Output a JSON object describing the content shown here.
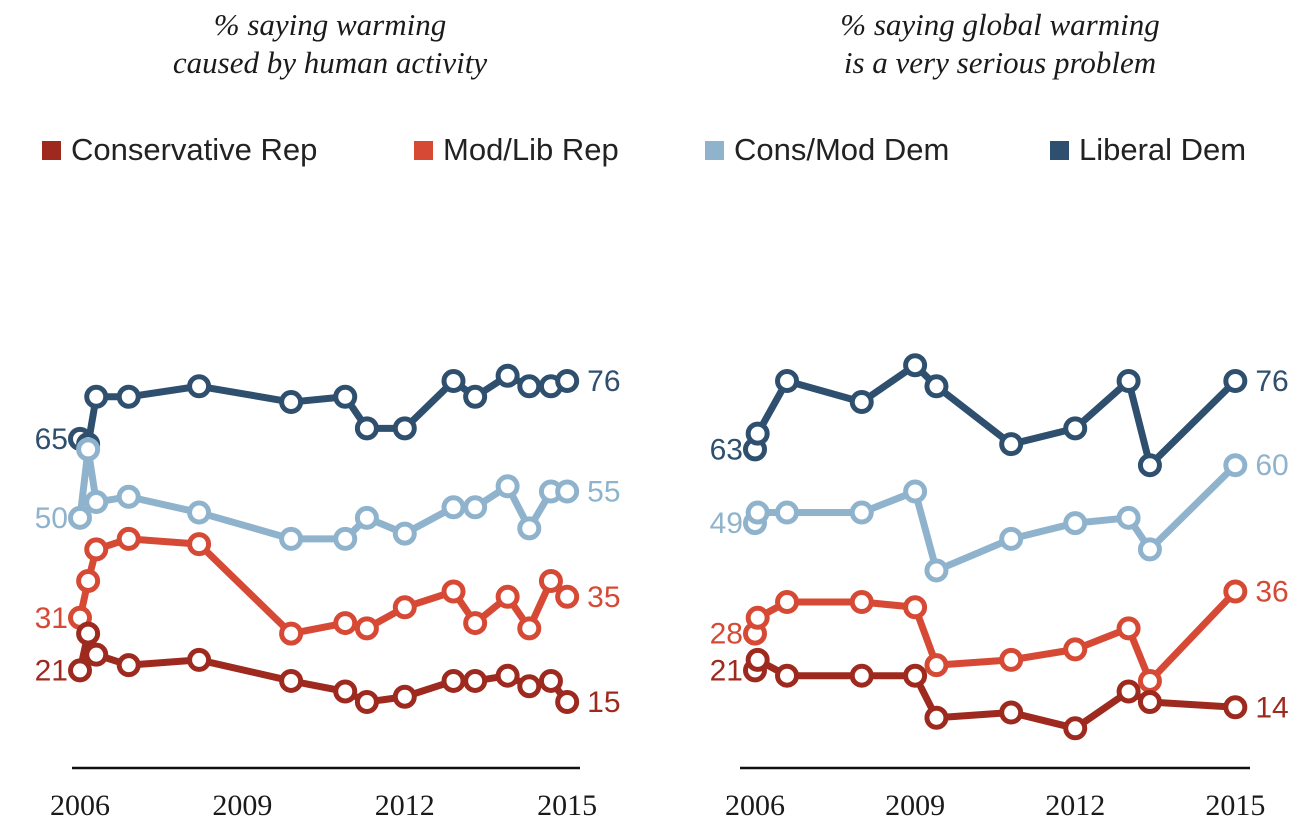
{
  "chart_data": [
    {
      "type": "line",
      "title": "% saying warming\ncaused by human activity",
      "x_ticks": [
        "2006",
        "2009",
        "2012",
        "2015"
      ],
      "xlim": [
        2006,
        2015.2
      ],
      "series": [
        {
          "name": "Liberal Dem",
          "color": "#2f4f6f",
          "x": [
            2006.0,
            2006.15,
            2006.3,
            2006.9,
            2008.2,
            2009.9,
            2010.9,
            2011.3,
            2012.0,
            2012.9,
            2013.3,
            2013.9,
            2014.3,
            2014.7,
            2015.0
          ],
          "y": [
            65,
            64,
            73,
            73,
            75,
            72,
            73,
            67,
            67,
            76,
            73,
            77,
            75,
            75,
            76
          ],
          "start_label": "65",
          "end_label": "76"
        },
        {
          "name": "Cons/Mod Dem",
          "color": "#8fb3cc",
          "x": [
            2006.0,
            2006.15,
            2006.3,
            2006.9,
            2008.2,
            2009.9,
            2010.9,
            2011.3,
            2012.0,
            2012.9,
            2013.3,
            2013.9,
            2014.3,
            2014.7,
            2015.0
          ],
          "y": [
            50,
            63,
            53,
            54,
            51,
            46,
            46,
            50,
            47,
            52,
            52,
            56,
            48,
            55,
            55
          ],
          "start_label": "50",
          "end_label": "55"
        },
        {
          "name": "Mod/Lib Rep",
          "color": "#d64a35",
          "x": [
            2006.0,
            2006.15,
            2006.3,
            2006.9,
            2008.2,
            2009.9,
            2010.9,
            2011.3,
            2012.0,
            2012.9,
            2013.3,
            2013.9,
            2014.3,
            2014.7,
            2015.0
          ],
          "y": [
            31,
            38,
            44,
            46,
            45,
            28,
            30,
            29,
            33,
            36,
            30,
            35,
            29,
            38,
            35
          ],
          "start_label": "31",
          "end_label": "35"
        },
        {
          "name": "Conservative Rep",
          "color": "#9e2a1f",
          "x": [
            2006.0,
            2006.15,
            2006.3,
            2006.9,
            2008.2,
            2009.9,
            2010.9,
            2011.3,
            2012.0,
            2012.9,
            2013.3,
            2013.9,
            2014.3,
            2014.7,
            2015.0
          ],
          "y": [
            21,
            28,
            24,
            22,
            23,
            19,
            17,
            15,
            16,
            19,
            19,
            20,
            18,
            19,
            15
          ],
          "start_label": "21",
          "end_label": "15"
        }
      ]
    },
    {
      "type": "line",
      "title": "% saying global warming\nis a very serious problem",
      "x_ticks": [
        "2006",
        "2009",
        "2012",
        "2015"
      ],
      "xlim": [
        2006,
        2015.2
      ],
      "series": [
        {
          "name": "Liberal Dem",
          "color": "#2f4f6f",
          "x": [
            2006.0,
            2006.05,
            2006.6,
            2008.0,
            2009.0,
            2009.4,
            2010.8,
            2012.0,
            2013.0,
            2013.4,
            2015.0
          ],
          "y": [
            63,
            66,
            76,
            72,
            79,
            75,
            64,
            67,
            76,
            60,
            76
          ],
          "start_label": "63",
          "end_label": "76"
        },
        {
          "name": "Cons/Mod Dem",
          "color": "#8fb3cc",
          "x": [
            2006.0,
            2006.05,
            2006.6,
            2008.0,
            2009.0,
            2009.4,
            2010.8,
            2012.0,
            2013.0,
            2013.4,
            2015.0
          ],
          "y": [
            49,
            51,
            51,
            51,
            55,
            40,
            46,
            49,
            50,
            44,
            60
          ],
          "start_label": "49",
          "end_label": "60"
        },
        {
          "name": "Mod/Lib Rep",
          "color": "#d64a35",
          "x": [
            2006.0,
            2006.05,
            2006.6,
            2008.0,
            2009.0,
            2009.4,
            2010.8,
            2012.0,
            2013.0,
            2013.4,
            2015.0
          ],
          "y": [
            28,
            31,
            34,
            34,
            33,
            22,
            23,
            25,
            29,
            19,
            36
          ],
          "start_label": "28",
          "end_label": "36"
        },
        {
          "name": "Conservative Rep",
          "color": "#9e2a1f",
          "x": [
            2006.0,
            2006.05,
            2006.6,
            2008.0,
            2009.0,
            2009.4,
            2010.8,
            2012.0,
            2013.0,
            2013.4,
            2015.0
          ],
          "y": [
            21,
            23,
            20,
            20,
            20,
            12,
            13,
            10,
            17,
            15,
            14
          ],
          "start_label": "21",
          "end_label": "14"
        }
      ]
    }
  ],
  "legend": [
    {
      "name": "Conservative Rep",
      "color": "#9e2a1f"
    },
    {
      "name": "Mod/Lib Rep",
      "color": "#d64a35"
    },
    {
      "name": "Cons/Mod Dem",
      "color": "#8fb3cc"
    },
    {
      "name": "Liberal Dem",
      "color": "#2f4f6f"
    }
  ]
}
